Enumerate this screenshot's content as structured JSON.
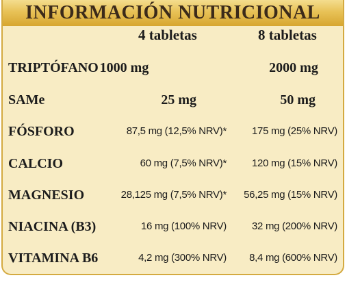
{
  "title": "INFORMACIÓN NUTRICIONAL",
  "columns": [
    "4 tabletas",
    "8 tabletas"
  ],
  "rows": [
    {
      "label": "TRIPTÓFANO",
      "v1": "1000 mg",
      "v2": "2000 mg"
    },
    {
      "label": "SAMe",
      "v1": "25 mg",
      "v2": "50 mg"
    },
    {
      "label": "FÓSFORO",
      "v1": "87,5 mg (12,5% NRV)*",
      "v2": "175 mg (25% NRV)"
    },
    {
      "label": "CALCIO",
      "v1": "60 mg (7,5% NRV)*",
      "v2": "120 mg (15% NRV)"
    },
    {
      "label": "MAGNESIO",
      "v1": "28,125 mg (7,5% NRV)*",
      "v2": "56,25 mg (15% NRV)"
    },
    {
      "label": "NIACINA (B3)",
      "v1": "16 mg (100% NRV)",
      "v2": "32 mg (200% NRV)"
    },
    {
      "label": "VITAMINA B6",
      "v1": "4,2 mg (300% NRV)",
      "v2": "8,4 mg (600% NRV)"
    }
  ],
  "colors": {
    "background": "#f8ecc4",
    "border": "#d4aa40",
    "title_bar": "#e8c257",
    "title_text": "#3b2a1a"
  }
}
